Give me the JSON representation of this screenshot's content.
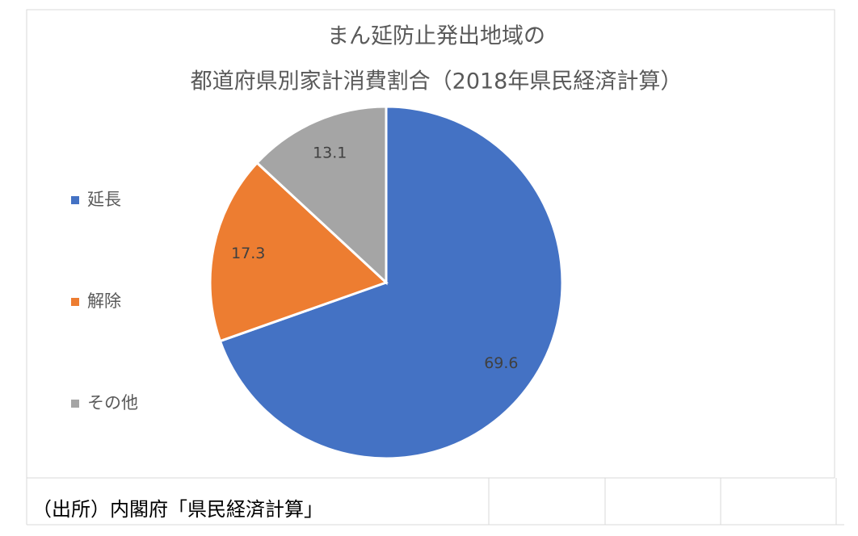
{
  "chart_data": {
    "type": "pie",
    "title": [
      "まん延防止発出地域の",
      "都道府県別家計消費割合（2018年県民経済計算）"
    ],
    "categories": [
      "延長",
      "解除",
      "その他"
    ],
    "values": [
      69.6,
      17.3,
      13.1
    ],
    "colors": [
      "#4472c4",
      "#ed7d31",
      "#a5a5a5"
    ],
    "legend": "left"
  },
  "source": "（出所）内閣府「県民経済計算」"
}
